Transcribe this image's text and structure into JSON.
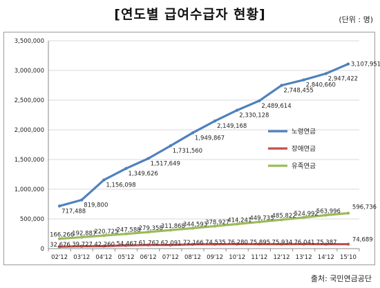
{
  "title": "[연도별 급여수급자 현황]",
  "unit": "(단위 : 명)",
  "source": "출처: 국민연금공단",
  "chart_data": {
    "type": "line",
    "categories": [
      "02'12",
      "03'12",
      "04'12",
      "05'12",
      "06'12",
      "07'12",
      "08'12",
      "09'12",
      "10'12",
      "11'12",
      "12'12",
      "13'12",
      "14'12",
      "15'10"
    ],
    "ylim": [
      0,
      3500000
    ],
    "yticks": [
      "0",
      "500,000",
      "1,000,000",
      "1,500,000",
      "2,000,000",
      "2,500,000",
      "3,000,000",
      "3,500,000"
    ],
    "grid": true,
    "legend_position": "right",
    "series": [
      {
        "name": "노령연금",
        "color": "#4f81bd",
        "values": [
          717488,
          819800,
          1156098,
          1349626,
          1517649,
          1731560,
          1949867,
          2149168,
          2330128,
          2489614,
          2748455,
          2840660,
          2947422,
          3107951
        ],
        "labels": [
          "717,488",
          "819,800",
          "1,156,098",
          "1,349,626",
          "1,517,649",
          "1,731,560",
          "1,949,867",
          "2,149,168",
          "2,330,128",
          "2,489,614",
          "2,748,455",
          "2,840,660",
          "2,947,422",
          "3,107,951"
        ]
      },
      {
        "name": "장애연금",
        "color": "#c0504d",
        "values": [
          32676,
          39727,
          42260,
          54467,
          61762,
          62091,
          72166,
          74535,
          76280,
          75895,
          75934,
          76041,
          75387,
          74689
        ],
        "labels": [
          "32,676",
          "39,727",
          "42,260",
          "54,467",
          "61,762",
          "62,091",
          "72,166",
          "74,535",
          "76,280",
          "75,895",
          "75,934",
          "76,041",
          "75,387",
          "74,689"
        ]
      },
      {
        "name": "유족연금",
        "color": "#9bbb59",
        "values": [
          166266,
          192887,
          220725,
          247588,
          279358,
          311868,
          344593,
          378927,
          414241,
          449735,
          485822,
          524992,
          563996,
          596736
        ],
        "labels": [
          "166,266",
          "192,887",
          "220,725",
          "247,588",
          "279,358",
          "311,868",
          "344,593",
          "378,927",
          "414,241",
          "449,735",
          "485,822",
          "524,992",
          "563,996",
          "596,736"
        ]
      }
    ]
  }
}
